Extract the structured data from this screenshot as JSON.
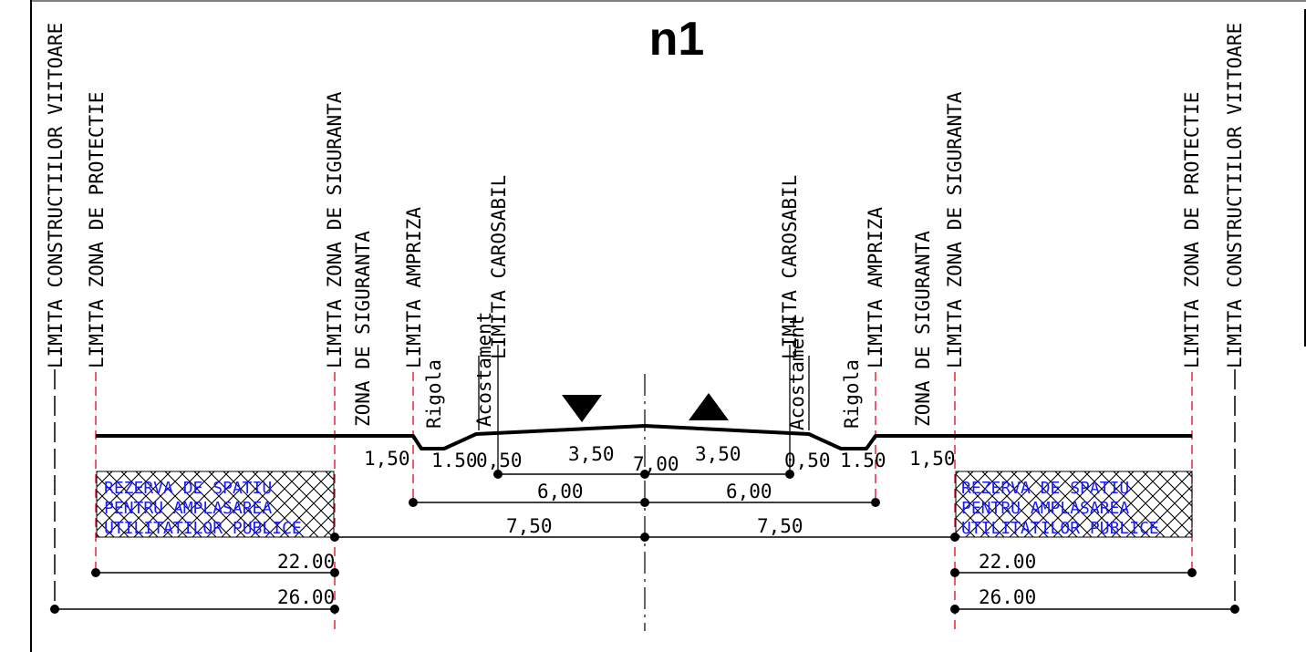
{
  "title": "n1",
  "colors": {
    "ink": "#000000",
    "red_dashed": "#e8001c",
    "reserve_text": "#1a1aff",
    "hatch": "#000000"
  },
  "vertical_labels": {
    "limita_constructiilor_viitoare": "LIMITA CONSTRUCTIILOR VIITOARE",
    "limita_zona_de_protectie": "LIMITA ZONA DE PROTECTIE",
    "limita_zona_de_siguranta": "LIMITA ZONA DE SIGURANTA",
    "zona_de_siguranta": "ZONA DE SIGURANTA",
    "limita_ampriza": "LIMITA AMPRIZA",
    "limita_carosabil": "LIMITA CAROSABIL",
    "rigola": "Rigola",
    "acostament": "Acostament"
  },
  "reserve_box": {
    "line1": "REZERVA DE SPATIU",
    "line2": "PENTRU AMPLASAREA",
    "line3": "UTILITATILOR PUBLICE"
  },
  "dimensions": {
    "siguranta_left": "1,50",
    "rigola_left": "1.50",
    "acostament_left": "0,50",
    "lane_left": "3,50",
    "total_carosabil": "7,00",
    "lane_right": "3,50",
    "acostament_right": "0,50",
    "rigola_right": "1.50",
    "siguranta_right": "1,50",
    "ampriza_left": "6,00",
    "ampriza_right": "6,00",
    "siguranta_total_left": "7,50",
    "siguranta_total_right": "7,50",
    "protectie_left": "22.00",
    "protectie_right": "22.00",
    "constructii_left": "26.00",
    "constructii_right": "26.00"
  }
}
